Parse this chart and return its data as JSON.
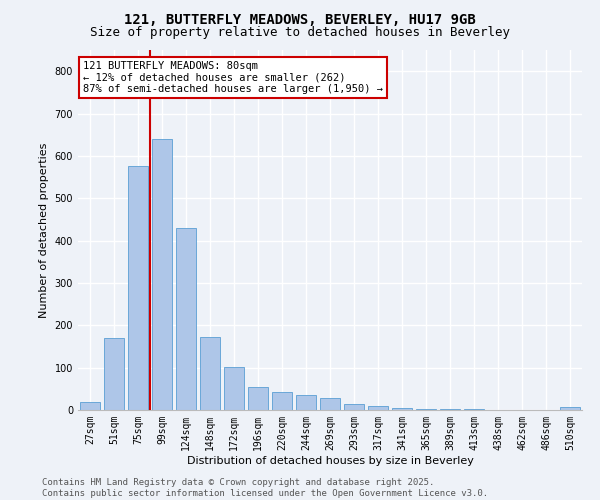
{
  "title": "121, BUTTERFLY MEADOWS, BEVERLEY, HU17 9GB",
  "subtitle": "Size of property relative to detached houses in Beverley",
  "xlabel": "Distribution of detached houses by size in Beverley",
  "ylabel": "Number of detached properties",
  "bar_color": "#aec6e8",
  "bar_edge_color": "#5a9fd4",
  "background_color": "#eef2f8",
  "grid_color": "#ffffff",
  "categories": [
    "27sqm",
    "51sqm",
    "75sqm",
    "99sqm",
    "124sqm",
    "148sqm",
    "172sqm",
    "196sqm",
    "220sqm",
    "244sqm",
    "269sqm",
    "293sqm",
    "317sqm",
    "341sqm",
    "365sqm",
    "389sqm",
    "413sqm",
    "438sqm",
    "462sqm",
    "486sqm",
    "510sqm"
  ],
  "values": [
    20,
    170,
    575,
    640,
    430,
    172,
    102,
    55,
    42,
    35,
    28,
    15,
    10,
    5,
    3,
    2,
    2,
    1,
    1,
    0,
    7
  ],
  "vline_color": "#cc0000",
  "annotation_text": "121 BUTTERFLY MEADOWS: 80sqm\n← 12% of detached houses are smaller (262)\n87% of semi-detached houses are larger (1,950) →",
  "annotation_box_color": "#ffffff",
  "annotation_box_edge": "#cc0000",
  "ylim": [
    0,
    850
  ],
  "yticks": [
    0,
    100,
    200,
    300,
    400,
    500,
    600,
    700,
    800
  ],
  "footer_text": "Contains HM Land Registry data © Crown copyright and database right 2025.\nContains public sector information licensed under the Open Government Licence v3.0.",
  "title_fontsize": 10,
  "subtitle_fontsize": 9,
  "axis_label_fontsize": 8,
  "tick_fontsize": 7,
  "annotation_fontsize": 7.5,
  "footer_fontsize": 6.5
}
